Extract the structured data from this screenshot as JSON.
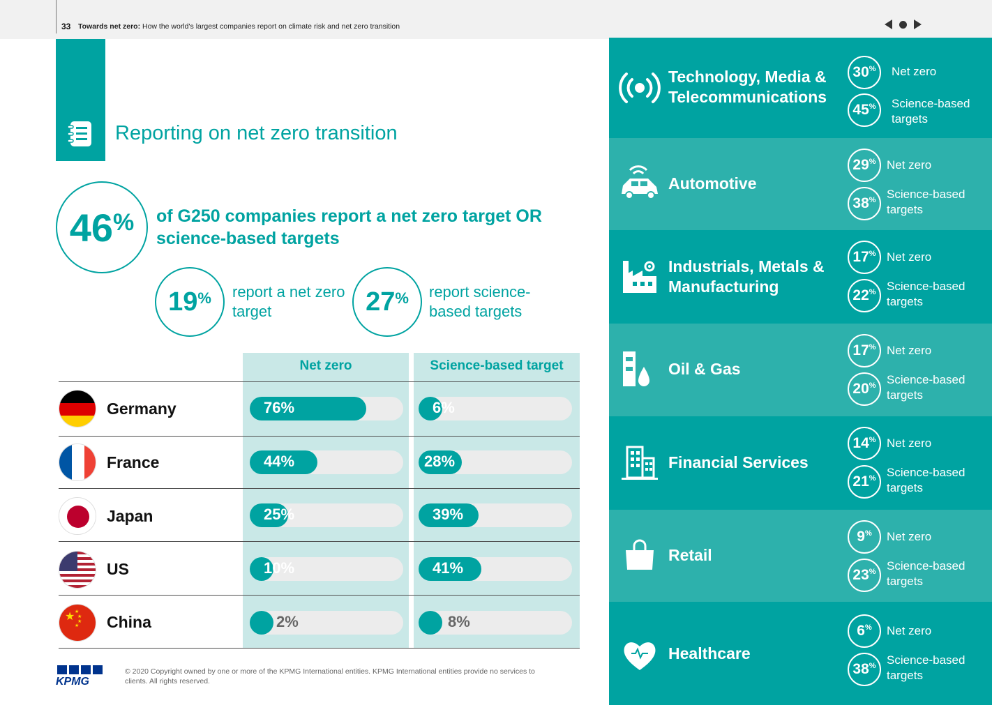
{
  "header": {
    "page_number": "33",
    "title_bold": "Towards net zero:",
    "title_rest": " How the world's largest companies report on climate risk and net zero transition"
  },
  "section_title": "Reporting on net zero transition",
  "headline_stat": {
    "value": "46",
    "unit": "%",
    "text": "of G250 companies report a net zero target OR science-based targets"
  },
  "sub_stats": [
    {
      "value": "19",
      "unit": "%",
      "text": "report a net zero target"
    },
    {
      "value": "27",
      "unit": "%",
      "text": "report science-based targets"
    }
  ],
  "table": {
    "columns": [
      "Net zero",
      "Science-based target"
    ],
    "rows": [
      {
        "country": "Germany",
        "net_zero": 76,
        "net_zero_label": "76%",
        "sbt": 6,
        "sbt_label": "6%"
      },
      {
        "country": "France",
        "net_zero": 44,
        "net_zero_label": "44%",
        "sbt": 28,
        "sbt_label": "28%"
      },
      {
        "country": "Japan",
        "net_zero": 25,
        "net_zero_label": "25%",
        "sbt": 39,
        "sbt_label": "39%"
      },
      {
        "country": "US",
        "net_zero": 10,
        "net_zero_label": "10%",
        "sbt": 41,
        "sbt_label": "41%"
      },
      {
        "country": "China",
        "net_zero": 2,
        "net_zero_label": "2%",
        "sbt": 8,
        "sbt_label": "8%"
      }
    ]
  },
  "sectors": [
    {
      "name": "Technology, Media & Telecommunications",
      "icon": "broadcast-icon",
      "net_zero": "30",
      "sbt": "45"
    },
    {
      "name": "Automotive",
      "icon": "car-icon",
      "net_zero": "29",
      "sbt": "38"
    },
    {
      "name": "Industrials, Metals & Manufacturing",
      "icon": "factory-icon",
      "net_zero": "17",
      "sbt": "22"
    },
    {
      "name": "Oil & Gas",
      "icon": "oil-gas-icon",
      "net_zero": "17",
      "sbt": "20"
    },
    {
      "name": "Financial Services",
      "icon": "building-icon",
      "net_zero": "14",
      "sbt": "21"
    },
    {
      "name": "Retail",
      "icon": "shopping-bag-icon",
      "net_zero": "9",
      "sbt": "23"
    },
    {
      "name": "Healthcare",
      "icon": "heart-icon",
      "net_zero": "6",
      "sbt": "38"
    }
  ],
  "sector_labels": {
    "pct": "%",
    "net_zero": "Net zero",
    "sbt": "Science-based targets"
  },
  "footer": {
    "logo": "KPMG",
    "copyright": "© 2020 Copyright owned by one or more of the KPMG International entities. KPMG International entities provide no services to clients. All rights reserved."
  },
  "colors": {
    "teal": "#00a3a1",
    "teal_light": "#2db1ac",
    "column_bg": "#c9e8e7",
    "track": "#ececec"
  }
}
